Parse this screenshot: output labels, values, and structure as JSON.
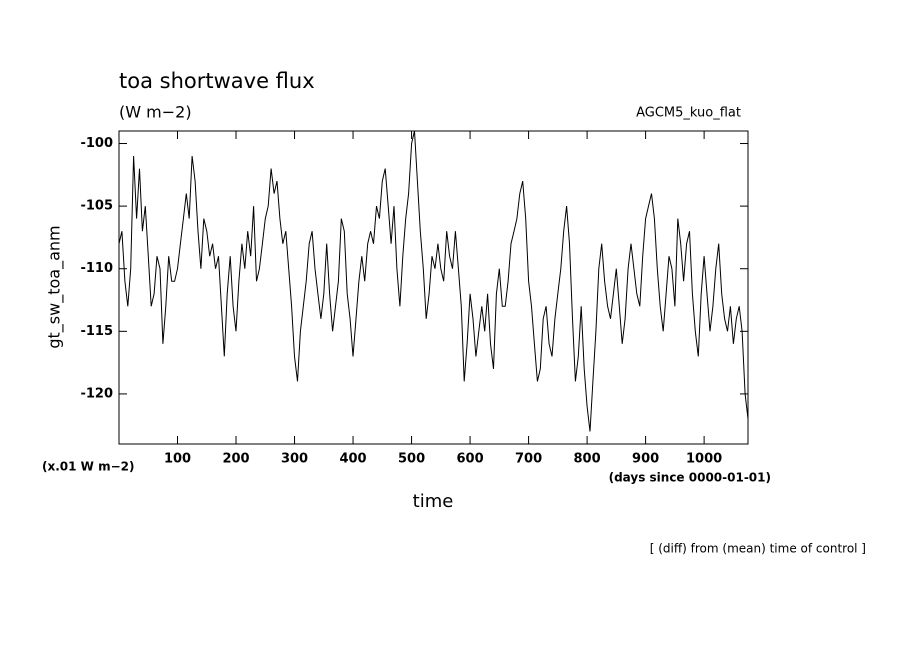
{
  "chart_data": {
    "type": "line",
    "title": "toa shortwave flux",
    "subtitle": "(W m−2)",
    "annotation": "AGCM5_kuo_flat",
    "ylabel": "gt_sw_toa_anm",
    "yunits": "(x.01 W m−2)",
    "xunits": "(days since 0000-01-01)",
    "xlabel": "time",
    "footer": "[ (diff) from (mean) time of control ]",
    "color": "#000000",
    "xlim": [
      0,
      1075
    ],
    "ylim": [
      -124,
      -99
    ],
    "xticks": [
      100,
      200,
      300,
      400,
      500,
      600,
      700,
      800,
      900,
      1000
    ],
    "yticks": [
      -100,
      -105,
      -110,
      -115,
      -120
    ],
    "x": [
      0,
      5,
      10,
      15,
      20,
      25,
      30,
      35,
      40,
      45,
      50,
      55,
      60,
      65,
      70,
      75,
      80,
      85,
      90,
      95,
      100,
      105,
      110,
      115,
      120,
      125,
      130,
      135,
      140,
      145,
      150,
      155,
      160,
      165,
      170,
      175,
      180,
      185,
      190,
      195,
      200,
      205,
      210,
      215,
      220,
      225,
      230,
      235,
      240,
      245,
      250,
      255,
      260,
      265,
      270,
      275,
      280,
      285,
      290,
      295,
      300,
      305,
      310,
      315,
      320,
      325,
      330,
      335,
      340,
      345,
      350,
      355,
      360,
      365,
      370,
      375,
      380,
      385,
      390,
      395,
      400,
      405,
      410,
      415,
      420,
      425,
      430,
      435,
      440,
      445,
      450,
      455,
      460,
      465,
      470,
      475,
      480,
      485,
      490,
      495,
      500,
      505,
      510,
      515,
      520,
      525,
      530,
      535,
      540,
      545,
      550,
      555,
      560,
      565,
      570,
      575,
      580,
      585,
      590,
      595,
      600,
      605,
      610,
      615,
      620,
      625,
      630,
      635,
      640,
      645,
      650,
      655,
      660,
      665,
      670,
      675,
      680,
      685,
      690,
      695,
      700,
      705,
      710,
      715,
      720,
      725,
      730,
      735,
      740,
      745,
      750,
      755,
      760,
      765,
      770,
      775,
      780,
      785,
      790,
      795,
      800,
      805,
      810,
      815,
      820,
      825,
      830,
      835,
      840,
      845,
      850,
      855,
      860,
      865,
      870,
      875,
      880,
      885,
      890,
      895,
      900,
      905,
      910,
      915,
      920,
      925,
      930,
      935,
      940,
      945,
      950,
      955,
      960,
      965,
      970,
      975,
      980,
      985,
      990,
      995,
      1000,
      1005,
      1010,
      1015,
      1020,
      1025,
      1030,
      1035,
      1040,
      1045,
      1050,
      1055,
      1060,
      1065,
      1070,
      1075
    ],
    "values": [
      -108,
      -107,
      -111,
      -113,
      -110,
      -101,
      -106,
      -102,
      -107,
      -105,
      -109,
      -113,
      -112,
      -109,
      -110,
      -116,
      -113,
      -109,
      -111,
      -111,
      -110,
      -108,
      -106,
      -104,
      -106,
      -101,
      -103,
      -107,
      -110,
      -106,
      -107,
      -109,
      -108,
      -110,
      -109,
      -113,
      -117,
      -112,
      -109,
      -113,
      -115,
      -111,
      -108,
      -110,
      -107,
      -109,
      -105,
      -111,
      -110,
      -108,
      -106,
      -105,
      -102,
      -104,
      -103,
      -106,
      -108,
      -107,
      -110,
      -113,
      -117,
      -119,
      -115,
      -113,
      -111,
      -108,
      -107,
      -110,
      -112,
      -114,
      -112,
      -108,
      -112,
      -115,
      -113,
      -111,
      -106,
      -107,
      -112,
      -114,
      -117,
      -114,
      -111,
      -109,
      -111,
      -108,
      -107,
      -108,
      -105,
      -106,
      -103,
      -102,
      -105,
      -108,
      -105,
      -110,
      -113,
      -109,
      -106,
      -104,
      -100,
      -99,
      -103,
      -107,
      -110,
      -114,
      -112,
      -109,
      -110,
      -108,
      -110,
      -111,
      -107,
      -109,
      -110,
      -107,
      -110,
      -113,
      -119,
      -116,
      -112,
      -114,
      -117,
      -115,
      -113,
      -115,
      -112,
      -116,
      -118,
      -112,
      -110,
      -113,
      -113,
      -111,
      -108,
      -107,
      -106,
      -104,
      -103,
      -106,
      -111,
      -113,
      -116,
      -119,
      -118,
      -114,
      -113,
      -116,
      -117,
      -114,
      -112,
      -110,
      -107,
      -105,
      -108,
      -114,
      -119,
      -117,
      -113,
      -118,
      -121,
      -123,
      -119,
      -115,
      -110,
      -108,
      -111,
      -113,
      -114,
      -112,
      -110,
      -113,
      -116,
      -114,
      -110,
      -108,
      -110,
      -112,
      -113,
      -109,
      -106,
      -105,
      -104,
      -106,
      -110,
      -113,
      -115,
      -112,
      -109,
      -110,
      -113,
      -106,
      -108,
      -111,
      -108,
      -107,
      -112,
      -115,
      -117,
      -112,
      -109,
      -112,
      -115,
      -113,
      -110,
      -108,
      -112,
      -114,
      -115,
      -113,
      -116,
      -114,
      -113,
      -115,
      -120,
      -122
    ]
  }
}
